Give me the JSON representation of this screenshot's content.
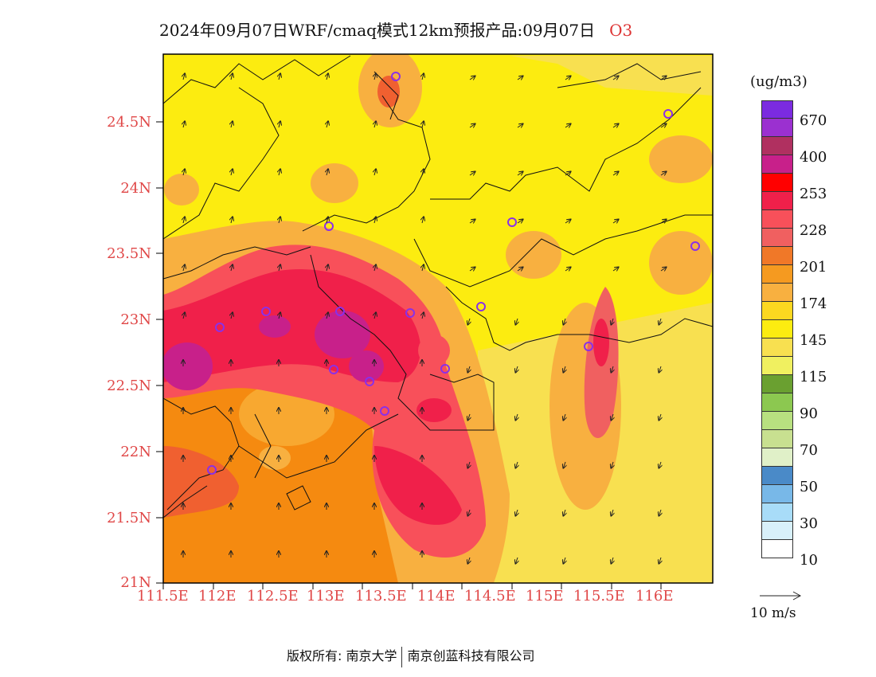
{
  "title": {
    "text": "2024年09月07日WRF/cmaq模式12km预报产品:09月07日",
    "variable": "O3"
  },
  "axes": {
    "lat_labels": [
      "24.5N",
      "24N",
      "23.5N",
      "23N",
      "22.5N",
      "22N",
      "21.5N",
      "21N"
    ],
    "lon_labels": [
      "111.5E",
      "112E",
      "112.5E",
      "113E",
      "113.5E",
      "114E",
      "114.5E",
      "115E",
      "115.5E",
      "116E"
    ]
  },
  "legend": {
    "unit": "(ug/m3)",
    "colors": [
      "#7b2be0",
      "#9b30d0",
      "#b03060",
      "#c8208a",
      "#ff0000",
      "#f0204a",
      "#f8505a",
      "#f06060",
      "#f07828",
      "#f59a20",
      "#f8b040",
      "#fcd820",
      "#fcec10",
      "#f8e050",
      "#f0f060",
      "#6aa030",
      "#8cc850",
      "#b8e080",
      "#c8e090",
      "#e0f0c8",
      "#4a8ac8",
      "#78b8e8",
      "#a8dcf8",
      "#d8f0fa",
      "#ffffff"
    ],
    "labels": [
      "670",
      "400",
      "253",
      "228",
      "201",
      "174",
      "145",
      "115",
      "90",
      "70",
      "50",
      "30",
      "10"
    ]
  },
  "wind_reference": {
    "label": "10 m/s"
  },
  "footer": {
    "left": "版权所有: 南京大学",
    "right": "南京创蓝科技有限公司"
  }
}
